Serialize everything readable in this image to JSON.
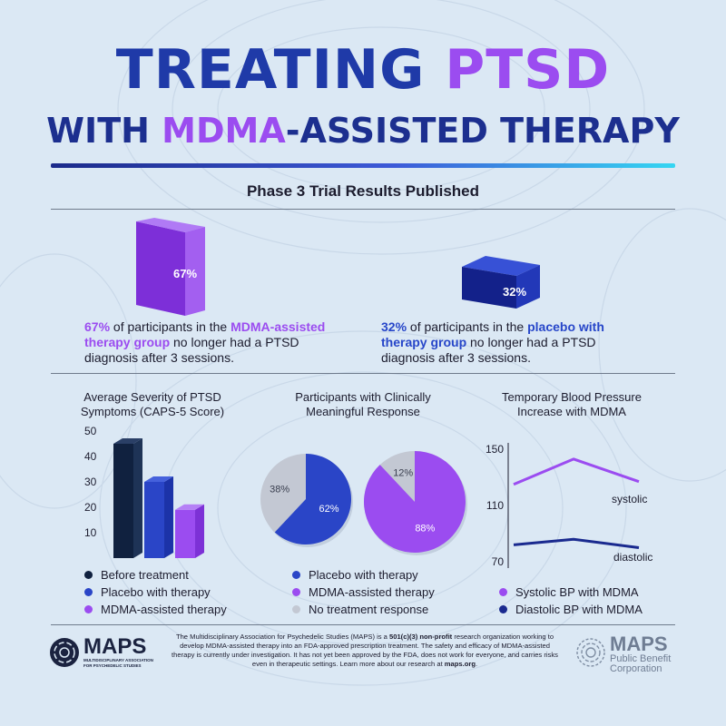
{
  "title": {
    "line1_a": "TREATING ",
    "line1_b": "PTSD",
    "line2_a": "WITH ",
    "line2_b": "MDMA",
    "line2_c": "-ASSISTED THERAPY"
  },
  "subtitle": "Phase 3 Trial Results Published",
  "colors": {
    "navy": "#10213f",
    "blue": "#2a45c7",
    "purple": "#9b4cf0",
    "gray": "#c3c8d3",
    "dark_blue": "#1a2a8f"
  },
  "stats": {
    "left": {
      "value": 67,
      "label": "67%",
      "pct": "67%",
      "t1": " of participants in the ",
      "highlight": "MDMA-assisted therapy group",
      "t2": " no longer had a PTSD diagnosis after 3 sessions."
    },
    "right": {
      "value": 32,
      "label": "32%",
      "pct": "32%",
      "t1": " of participants in the ",
      "highlight": "placebo with therapy group",
      "t2": " no longer had a PTSD diagnosis after 3 sessions."
    }
  },
  "chart_data": [
    {
      "type": "bar",
      "title": "Average Severity of PTSD Symptoms (CAPS-5 Score)",
      "categories": [
        "Before treatment",
        "Placebo with therapy",
        "MDMA-assisted therapy"
      ],
      "values": [
        45,
        30,
        19
      ],
      "yticks": [
        "10",
        "20",
        "30",
        "40",
        "50"
      ],
      "ylim": [
        0,
        50
      ],
      "legend": [
        "Before treatment",
        "Placebo with therapy",
        "MDMA-assisted therapy"
      ],
      "legend_position": "bottom"
    },
    {
      "type": "pie",
      "title": "Participants with Clinically Meaningful Response",
      "pies": [
        {
          "name": "Placebo with therapy",
          "slices": [
            {
              "label": "62%",
              "value": 62
            },
            {
              "label": "38%",
              "value": 38
            }
          ]
        },
        {
          "name": "MDMA-assisted therapy",
          "slices": [
            {
              "label": "88%",
              "value": 88
            },
            {
              "label": "12%",
              "value": 12
            }
          ]
        }
      ],
      "legend": [
        "Placebo with therapy",
        "MDMA-assisted therapy",
        "No treatment response"
      ],
      "legend_position": "bottom"
    },
    {
      "type": "line",
      "title": "Temporary Blood Pressure Increase with MDMA",
      "x": [
        0,
        1,
        2
      ],
      "series": [
        {
          "label": "systolic",
          "values": [
            125,
            143,
            127
          ]
        },
        {
          "label": "diastolic",
          "values": [
            82,
            86,
            80
          ]
        }
      ],
      "yticks": [
        "150",
        "110",
        "70"
      ],
      "ylim": [
        70,
        150
      ],
      "legend": [
        "Systolic BP with MDMA",
        "Diastolic BP with MDMA"
      ],
      "legend_position": "bottom"
    }
  ],
  "footer": {
    "t1": "The Multidisciplinary Association for Psychedelic Studies (MAPS) is a ",
    "b1": "501(c)(3) non-profit",
    "t2": " research organization working to develop MDMA-assisted therapy into an FDA-approved prescription treatment. The safety and efficacy of MDMA-assisted therapy is currently under investigation. It has not yet been approved by the FDA, does not work for everyone, and carries risks even in therapeutic settings. Learn more about our research at ",
    "b2": "maps.org",
    "t3": "."
  },
  "logo_left": {
    "name": "MAPS",
    "sub1": "MULTIDISCIPLINARY ASSOCIATION",
    "sub2": "FOR PSYCHEDELIC STUDIES"
  },
  "logo_right": {
    "name": "MAPS",
    "sub1": "Public Benefit",
    "sub2": "Corporation"
  }
}
